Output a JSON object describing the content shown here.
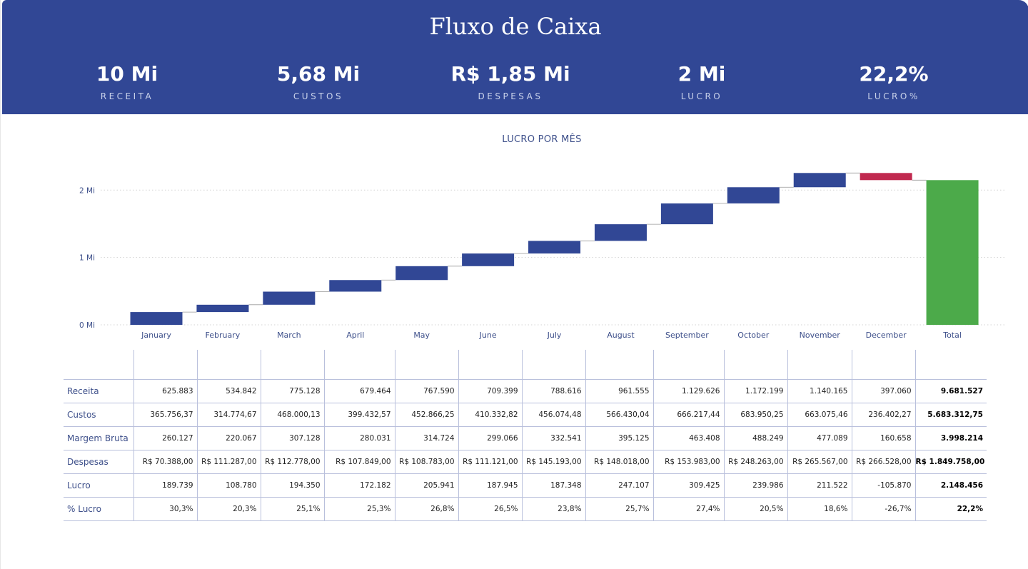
{
  "header": {
    "title": "Fluxo de Caixa",
    "kpis": [
      {
        "value": "10 Mi",
        "label": "RECEITA"
      },
      {
        "value": "5,68 Mi",
        "label": "CUSTOS"
      },
      {
        "value": "R$ 1,85 Mi",
        "label": "DESPESAS"
      },
      {
        "value": "2 Mi",
        "label": "LUCRO"
      },
      {
        "value": "22,2%",
        "label": "LUCRO%"
      }
    ]
  },
  "chart_data": {
    "type": "waterfall",
    "title": "LUCRO POR MÊS",
    "categories": [
      "January",
      "February",
      "March",
      "April",
      "May",
      "June",
      "July",
      "August",
      "September",
      "October",
      "November",
      "December",
      "Total"
    ],
    "values": [
      189739,
      108780,
      194350,
      172182,
      205941,
      187945,
      187348,
      247107,
      309425,
      239986,
      211522,
      -105870,
      2148456
    ],
    "ylim": [
      0,
      2300000
    ],
    "yticks": [
      0,
      1000000,
      2000000
    ],
    "ytick_labels": [
      "0 Mi",
      "1 Mi",
      "2 Mi"
    ],
    "colors": {
      "increase": "#314795",
      "decrease": "#c0294f",
      "total": "#4caa4a",
      "grid": "#d3d3d3",
      "axis_text": "#3d4f8a"
    },
    "grid": true
  },
  "table": {
    "columns": [
      "",
      "",
      "",
      "",
      "",
      "",
      "",
      "",
      "",
      "",
      "",
      "",
      "",
      ""
    ],
    "rows": [
      {
        "label": "Receita",
        "values": [
          "625.883",
          "534.842",
          "775.128",
          "679.464",
          "767.590",
          "709.399",
          "788.616",
          "961.555",
          "1.129.626",
          "1.172.199",
          "1.140.165",
          "397.060"
        ],
        "total": "9.681.527"
      },
      {
        "label": "Custos",
        "values": [
          "365.756,37",
          "314.774,67",
          "468.000,13",
          "399.432,57",
          "452.866,25",
          "410.332,82",
          "456.074,48",
          "566.430,04",
          "666.217,44",
          "683.950,25",
          "663.075,46",
          "236.402,27"
        ],
        "total": "5.683.312,75"
      },
      {
        "label": "Margem Bruta",
        "values": [
          "260.127",
          "220.067",
          "307.128",
          "280.031",
          "314.724",
          "299.066",
          "332.541",
          "395.125",
          "463.408",
          "488.249",
          "477.089",
          "160.658"
        ],
        "total": "3.998.214"
      },
      {
        "label": "Despesas",
        "values": [
          "R$ 70.388,00",
          "R$ 111.287,00",
          "R$ 112.778,00",
          "R$ 107.849,00",
          "R$ 108.783,00",
          "R$ 111.121,00",
          "R$ 145.193,00",
          "R$ 148.018,00",
          "R$ 153.983,00",
          "R$ 248.263,00",
          "R$ 265.567,00",
          "R$ 266.528,00"
        ],
        "total": "R$ 1.849.758,00"
      },
      {
        "label": "Lucro",
        "values": [
          "189.739",
          "108.780",
          "194.350",
          "172.182",
          "205.941",
          "187.945",
          "187.348",
          "247.107",
          "309.425",
          "239.986",
          "211.522",
          "-105.870"
        ],
        "total": "2.148.456"
      },
      {
        "label": "% Lucro",
        "values": [
          "30,3%",
          "20,3%",
          "25,1%",
          "25,3%",
          "26,8%",
          "26,5%",
          "23,8%",
          "25,7%",
          "27,4%",
          "20,5%",
          "18,6%",
          "-26,7%"
        ],
        "total": "22,2%"
      }
    ]
  }
}
